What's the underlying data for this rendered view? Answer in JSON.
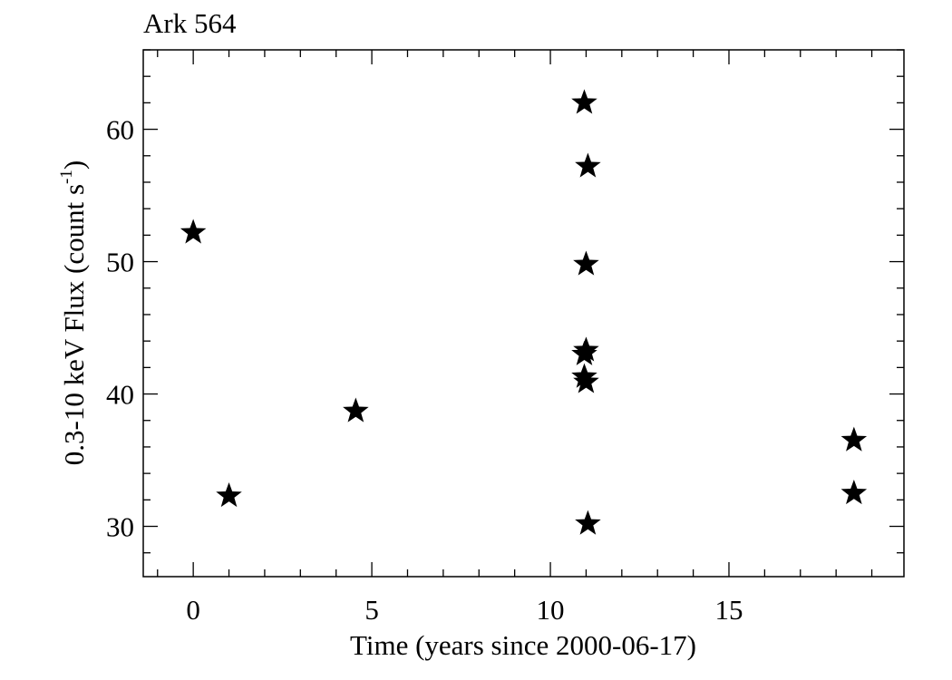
{
  "chart_data": {
    "type": "scatter",
    "title": "Ark 564",
    "xlabel": "Time (years since 2000-06-17)",
    "ylabel": "0.3-10 keV Flux (count s-1)",
    "ylabel_main": "0.3-10 keV Flux (count s",
    "ylabel_sup": "-1",
    "ylabel_close": ")",
    "xlim": [
      -1.4,
      19.9
    ],
    "ylim": [
      26.2,
      66.0
    ],
    "x_ticks": [
      0,
      5,
      10,
      15
    ],
    "x_tick_labels": [
      "0",
      "5",
      "10",
      "15"
    ],
    "y_ticks": [
      30,
      40,
      50,
      60
    ],
    "y_tick_labels": [
      "30",
      "40",
      "50",
      "60"
    ],
    "x_minor_step": 1,
    "y_minor_step": 2,
    "marker": "star",
    "marker_color": "#000000",
    "grid": false,
    "legend": "none",
    "series": [
      {
        "points": [
          {
            "x": 0.0,
            "y": 52.2
          },
          {
            "x": 1.0,
            "y": 32.3
          },
          {
            "x": 4.55,
            "y": 38.7
          },
          {
            "x": 10.95,
            "y": 62.0
          },
          {
            "x": 11.05,
            "y": 57.2
          },
          {
            "x": 11.0,
            "y": 49.8
          },
          {
            "x": 11.0,
            "y": 43.3
          },
          {
            "x": 10.95,
            "y": 43.0
          },
          {
            "x": 10.95,
            "y": 41.3
          },
          {
            "x": 11.0,
            "y": 40.9
          },
          {
            "x": 11.05,
            "y": 30.2
          },
          {
            "x": 18.5,
            "y": 36.5
          },
          {
            "x": 18.5,
            "y": 32.5
          }
        ]
      }
    ]
  }
}
